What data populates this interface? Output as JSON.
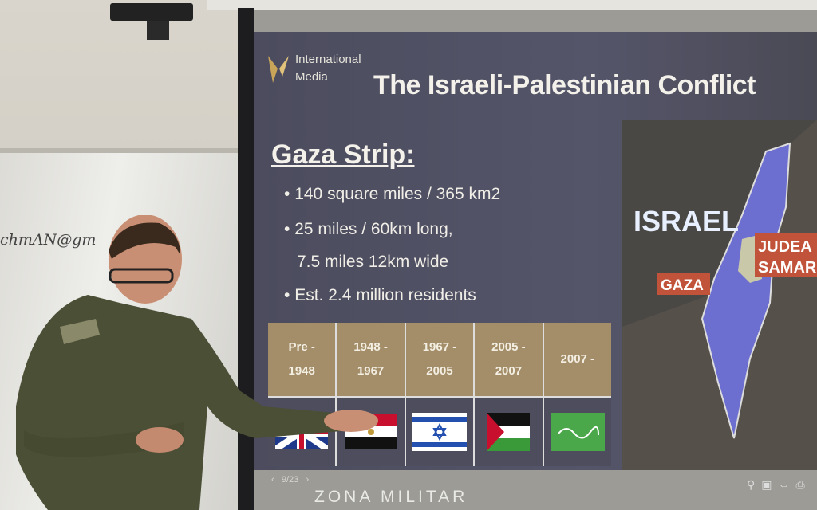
{
  "whiteboard": {
    "handwriting": "chmAN@gm"
  },
  "slide": {
    "logo": {
      "line1": "International",
      "line2": "Media"
    },
    "title": "The Israeli-Palestinian Conflict",
    "subtitle": "Gaza Strip:",
    "bullets": [
      "140 square miles / 365 km2",
      "25 miles / 60km long,",
      "7.5 miles 12km wide",
      "Est. 2.4 million residents"
    ],
    "bullet_marker": "•",
    "table": {
      "periods": [
        "Pre -\n1948",
        "1948 -\n1967",
        "1967 -\n2005",
        "2005 -\n2007",
        "2007 -"
      ],
      "flags": [
        "united-kingdom-flag",
        "egypt-flag",
        "israel-flag",
        "palestine-flag",
        "hamas-flag"
      ]
    },
    "map": {
      "labels": {
        "israel": "ISRAEL",
        "gaza": "GAZA",
        "judea": "JUDEA",
        "samaria": "SAMAR"
      },
      "colors": {
        "israel": "#6d6fd0",
        "west_bank": "#c9c8a8",
        "label_bg": "#c0533a"
      }
    }
  },
  "viewer": {
    "page_counter": "9/23",
    "prev": "‹",
    "next": "›",
    "icons": [
      "zoom-icon",
      "screen-icon",
      "fullscreen-icon",
      "print-icon"
    ]
  },
  "watermark": "ZONA MILITAR"
}
